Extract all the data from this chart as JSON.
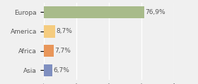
{
  "categories": [
    "Europa",
    "America",
    "Africa",
    "Asia"
  ],
  "values": [
    76.9,
    8.7,
    7.7,
    6.7
  ],
  "labels": [
    "76,9%",
    "8,7%",
    "7,7%",
    "6,7%"
  ],
  "bar_colors": [
    "#a8bb8a",
    "#f5cc7f",
    "#e8965a",
    "#7f8fc0"
  ],
  "background_color": "#f0f0f0",
  "text_color": "#555555",
  "xlim": [
    0,
    100
  ],
  "bar_height": 0.62,
  "label_fontsize": 6.5,
  "tick_fontsize": 6.5,
  "grid_color": "#ffffff",
  "grid_ticks": [
    0,
    25,
    50,
    75,
    100
  ]
}
